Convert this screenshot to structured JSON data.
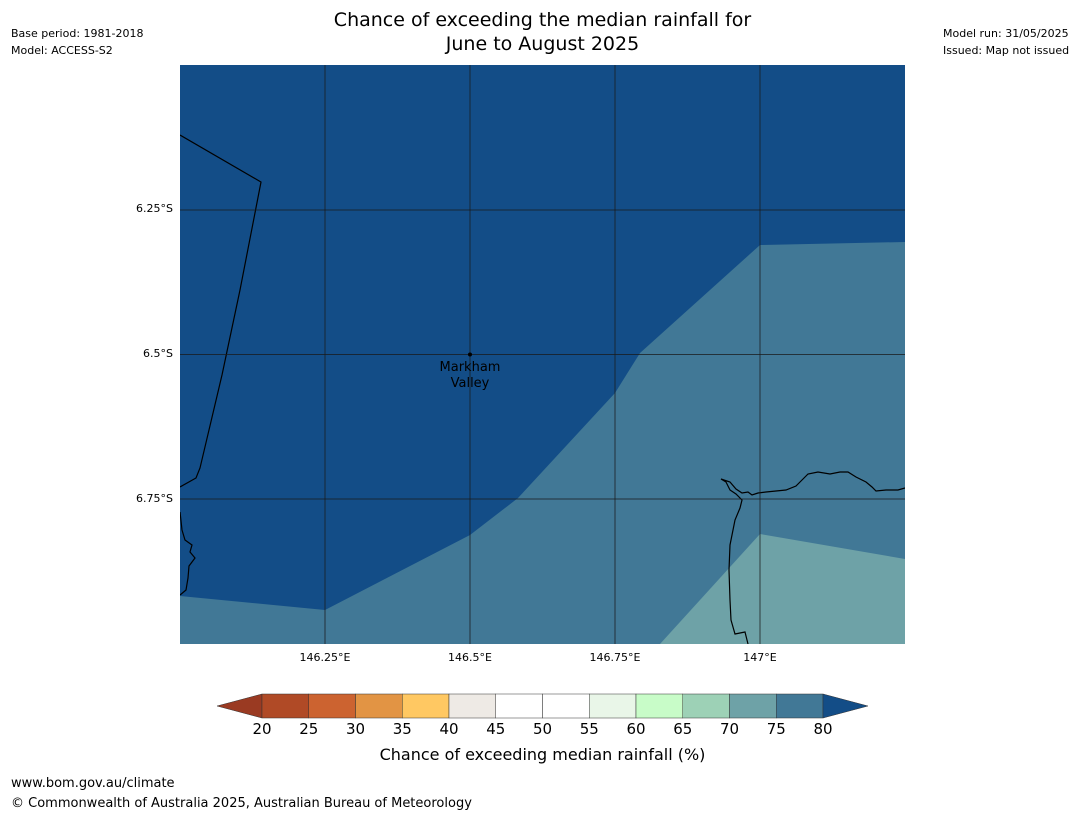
{
  "title": {
    "line1": "Chance of exceeding the median rainfall for",
    "line2": "June to August 2025"
  },
  "meta_left": {
    "base_period": "Base period: 1981-2018",
    "model": "Model: ACCESS-S2"
  },
  "meta_right": {
    "model_run": "Model run: 31/05/2025",
    "issued": "Issued: Map not issued"
  },
  "map": {
    "lon_range": [
      146.0,
      147.25
    ],
    "lat_range": [
      -6.0,
      -7.0
    ],
    "lat_ticks": [
      {
        "value": -6.25,
        "label": "6.25°S"
      },
      {
        "value": -6.5,
        "label": "6.5°S"
      },
      {
        "value": -6.75,
        "label": "6.75°S"
      }
    ],
    "lon_ticks": [
      {
        "value": 146.25,
        "label": "146.25°E"
      },
      {
        "value": 146.5,
        "label": "146.5°E"
      },
      {
        "value": 146.75,
        "label": "146.75°E"
      },
      {
        "value": 147.0,
        "label": "147°E"
      }
    ],
    "place": {
      "name_line1": "Markham",
      "name_line2": "Valley",
      "lon": 146.5,
      "lat": -6.5
    },
    "colors": {
      "band_80_plus": "#134d87",
      "band_75_80": "#417896",
      "band_70_75": "#6ea2a7"
    }
  },
  "colorbar": {
    "title": "Chance of exceeding median rainfall (%)",
    "ticks": [
      "20",
      "25",
      "30",
      "35",
      "40",
      "45",
      "50",
      "55",
      "60",
      "65",
      "70",
      "75",
      "80"
    ],
    "under_color": "#9a3a22",
    "over_color": "#134d87",
    "colors": [
      "#b04a26",
      "#cc6330",
      "#e29444",
      "#ffc862",
      "#eeeae5",
      "#ffffff",
      "#ffffff",
      "#e9f6e8",
      "#c8fcc8",
      "#9dd1b6",
      "#6ea2a7",
      "#417896"
    ]
  },
  "footer": {
    "url": "www.bom.gov.au/climate",
    "copyright": "© Commonwealth of Australia 2025, Australian Bureau of Meteorology"
  }
}
